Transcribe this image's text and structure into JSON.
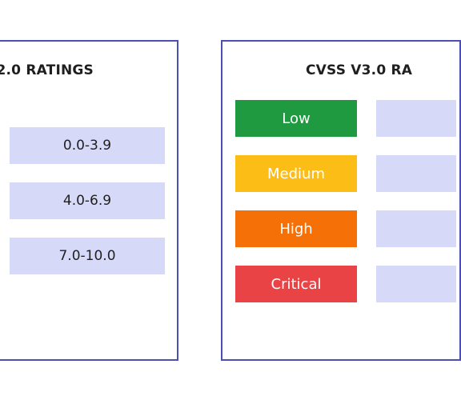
{
  "v2": {
    "title": "2.0 RATINGS",
    "ranges": [
      "0.0-3.9",
      "4.0-6.9",
      "7.0-10.0"
    ]
  },
  "v3": {
    "title": "CVSS V3.0 RA",
    "severities": [
      {
        "label": "Low",
        "color": "#1f9a41"
      },
      {
        "label": "Medium",
        "color": "#fbbd16"
      },
      {
        "label": "High",
        "color": "#f57108"
      },
      {
        "label": "Critical",
        "color": "#e94346"
      }
    ]
  },
  "colors": {
    "border": "#4b4fb4",
    "range_fill": "#d7d9f8"
  }
}
